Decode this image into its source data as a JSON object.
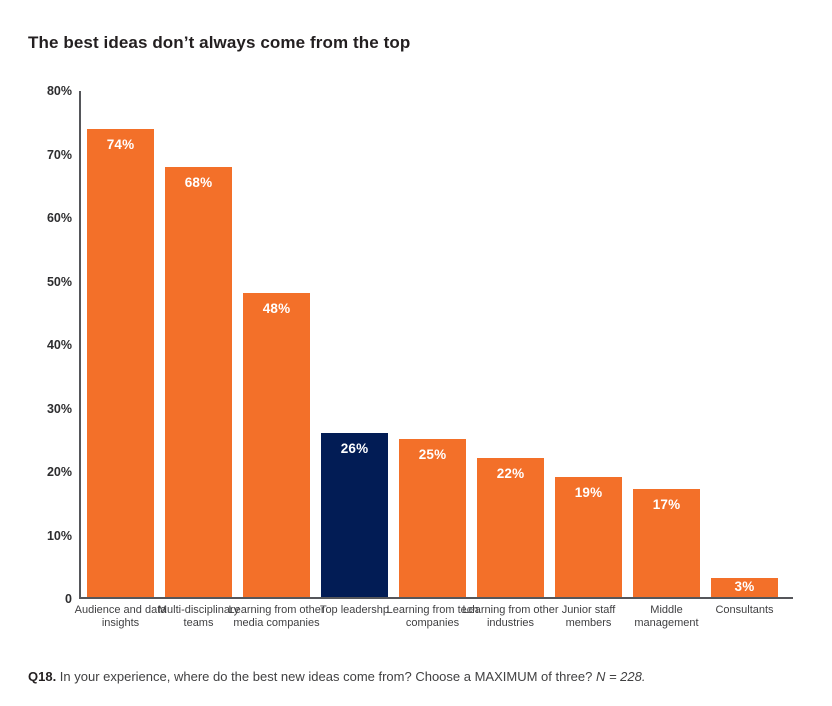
{
  "chart_data": {
    "type": "bar",
    "title": "The best ideas don’t always come from the top",
    "categories": [
      "Audience and data insights",
      "Multi-disciplinary teams",
      "Learning from other media companies",
      "Top leadershp",
      "Learning from tech companies",
      "Learning from other industries",
      "Junior staff members",
      "Middle management",
      "Consultants"
    ],
    "values": [
      74,
      68,
      48,
      26,
      25,
      22,
      19,
      17,
      3
    ],
    "value_labels": [
      "74%",
      "68%",
      "48%",
      "26%",
      "25%",
      "22%",
      "19%",
      "17%",
      "3%"
    ],
    "highlight_index": 3,
    "bar_color": "#F37029",
    "highlight_color": "#021C55",
    "value_label_color": "#FFFFFF",
    "yticks": [
      "80%",
      "70%",
      "60%",
      "50%",
      "40%",
      "30%",
      "20%",
      "10%",
      "0"
    ],
    "ylim": [
      0,
      80
    ],
    "grid": false,
    "legend_position": "none",
    "xlabel": "",
    "ylabel": ""
  },
  "caption": {
    "question_number": "Q18.",
    "body": " In your experience, where do the best new ideas come from? Choose a MAXIMUM of three? ",
    "sample_size": "N = 228."
  }
}
